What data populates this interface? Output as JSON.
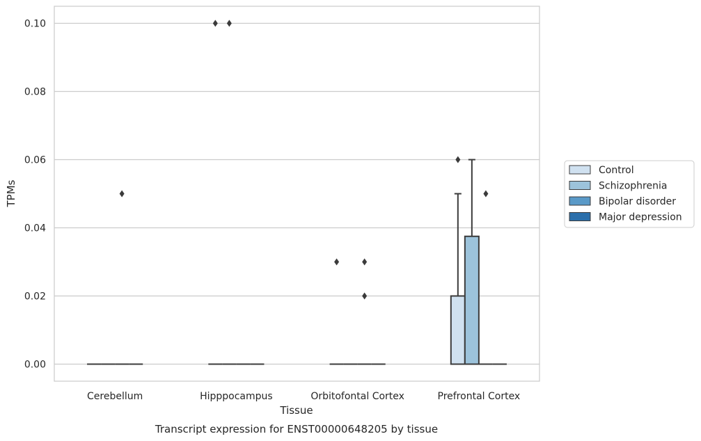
{
  "chart_data": {
    "type": "box",
    "caption": "Transcript expression for ENST00000648205 by tissue",
    "xlabel": "Tissue",
    "ylabel": "TPMs",
    "ylim": [
      -0.005,
      0.105
    ],
    "yticks": [
      0.0,
      0.02,
      0.04,
      0.06,
      0.08,
      0.1
    ],
    "ytick_labels": [
      "0.00",
      "0.02",
      "0.04",
      "0.06",
      "0.08",
      "0.10"
    ],
    "categories": [
      "Cerebellum",
      "Hipppocampus",
      "Orbitofontal Cortex",
      "Prefrontal Cortex"
    ],
    "grid": true,
    "legend_position": "right",
    "series": [
      {
        "name": "Control",
        "color": "#d0e1f0",
        "boxes": [
          {
            "q1": 0,
            "median": 0,
            "q3": 0,
            "whisker_low": 0,
            "whisker_high": 0,
            "outliers": []
          },
          {
            "q1": 0,
            "median": 0,
            "q3": 0,
            "whisker_low": 0,
            "whisker_high": 0,
            "outliers": [
              0.1
            ]
          },
          {
            "q1": 0,
            "median": 0,
            "q3": 0,
            "whisker_low": 0,
            "whisker_high": 0,
            "outliers": [
              0.03
            ]
          },
          {
            "q1": 0,
            "median": 0,
            "q3": 0.02,
            "whisker_low": 0,
            "whisker_high": 0.05,
            "outliers": [
              0.06
            ]
          }
        ]
      },
      {
        "name": "Schizophrenia",
        "color": "#9cc3db",
        "boxes": [
          {
            "q1": 0,
            "median": 0,
            "q3": 0,
            "whisker_low": 0,
            "whisker_high": 0,
            "outliers": []
          },
          {
            "q1": 0,
            "median": 0,
            "q3": 0,
            "whisker_low": 0,
            "whisker_high": 0,
            "outliers": [
              0.1
            ]
          },
          {
            "q1": 0,
            "median": 0,
            "q3": 0,
            "whisker_low": 0,
            "whisker_high": 0,
            "outliers": []
          },
          {
            "q1": 0,
            "median": 0,
            "q3": 0.0375,
            "whisker_low": 0,
            "whisker_high": 0.06,
            "outliers": []
          }
        ]
      },
      {
        "name": "Bipolar disorder",
        "color": "#5a9ac8",
        "boxes": [
          {
            "q1": 0,
            "median": 0,
            "q3": 0,
            "whisker_low": 0,
            "whisker_high": 0,
            "outliers": [
              0.05
            ]
          },
          {
            "q1": 0,
            "median": 0,
            "q3": 0,
            "whisker_low": 0,
            "whisker_high": 0,
            "outliers": []
          },
          {
            "q1": 0,
            "median": 0,
            "q3": 0,
            "whisker_low": 0,
            "whisker_high": 0,
            "outliers": [
              0.03,
              0.02
            ]
          },
          {
            "q1": 0,
            "median": 0,
            "q3": 0,
            "whisker_low": 0,
            "whisker_high": 0,
            "outliers": [
              0.05
            ]
          }
        ]
      },
      {
        "name": "Major depression",
        "color": "#2b6fab",
        "boxes": [
          {
            "q1": 0,
            "median": 0,
            "q3": 0,
            "whisker_low": 0,
            "whisker_high": 0,
            "outliers": []
          },
          {
            "q1": 0,
            "median": 0,
            "q3": 0,
            "whisker_low": 0,
            "whisker_high": 0,
            "outliers": []
          },
          {
            "q1": 0,
            "median": 0,
            "q3": 0,
            "whisker_low": 0,
            "whisker_high": 0,
            "outliers": []
          },
          {
            "q1": 0,
            "median": 0,
            "q3": 0,
            "whisker_low": 0,
            "whisker_high": 0,
            "outliers": []
          }
        ]
      }
    ]
  }
}
